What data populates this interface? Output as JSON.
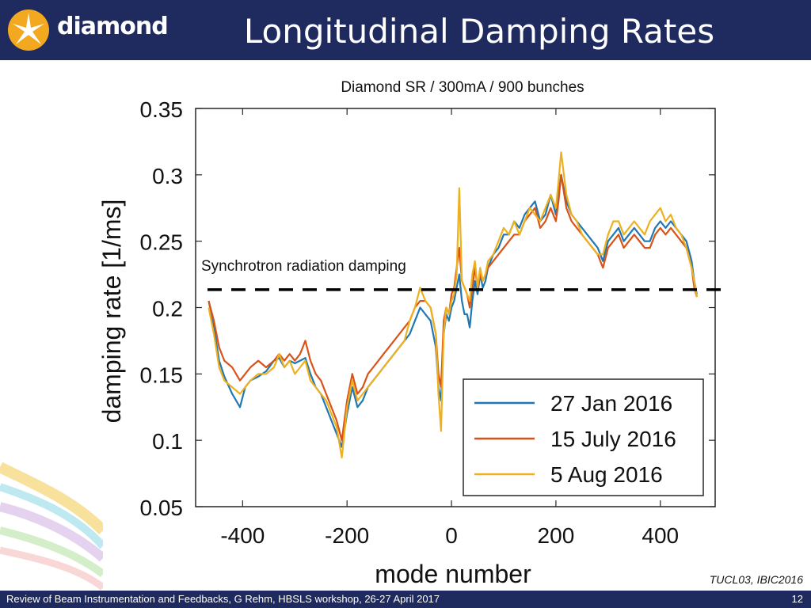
{
  "header": {
    "logo_text": "diamond",
    "title": "Longitudinal Damping Rates"
  },
  "footer": {
    "text": "Review of Beam Instrumentation and Feedbacks, G Rehm, HBSLS workshop, 26-27 April 2017",
    "page_number": "12"
  },
  "conference_ref": "TUCL03, IBIC2016",
  "colors": {
    "header_bg": "#1f2a5e",
    "series": [
      "#1f77b4",
      "#d95319",
      "#edb120"
    ]
  },
  "chart_data": {
    "type": "line",
    "title": "Diamond SR / 300mA / 900 bunches",
    "xlabel": "mode number",
    "ylabel": "damping rate [1/ms]",
    "xlim": [
      -490,
      505
    ],
    "ylim": [
      0.05,
      0.35
    ],
    "xticks": [
      -400,
      -200,
      0,
      200,
      400
    ],
    "yticks": [
      0.05,
      0.1,
      0.15,
      0.2,
      0.25,
      0.3,
      0.35
    ],
    "ytick_labels": [
      "0.05",
      "0.1",
      "0.15",
      "0.2",
      "0.25",
      "0.3",
      "0.35"
    ],
    "grid": false,
    "legend_position": "bottom-right",
    "annotation": {
      "text": "Synchrotron radiation damping",
      "value": 0.2135,
      "style": "dashed"
    },
    "x": [
      -465,
      -455,
      -445,
      -435,
      -420,
      -405,
      -395,
      -385,
      -370,
      -355,
      -340,
      -330,
      -320,
      -310,
      -300,
      -290,
      -280,
      -270,
      -260,
      -250,
      -240,
      -230,
      -220,
      -210,
      -200,
      -190,
      -180,
      -170,
      -160,
      -150,
      -140,
      -130,
      -120,
      -110,
      -100,
      -90,
      -80,
      -70,
      -60,
      -50,
      -40,
      -30,
      -25,
      -20,
      -15,
      -10,
      -5,
      0,
      5,
      10,
      15,
      20,
      25,
      30,
      35,
      40,
      45,
      50,
      55,
      60,
      65,
      70,
      80,
      90,
      100,
      110,
      120,
      130,
      140,
      150,
      160,
      170,
      180,
      190,
      200,
      205,
      210,
      220,
      230,
      240,
      250,
      260,
      270,
      280,
      290,
      300,
      310,
      320,
      330,
      340,
      350,
      360,
      370,
      380,
      390,
      400,
      410,
      420,
      430,
      440,
      450,
      460,
      465,
      470
    ],
    "series": [
      {
        "name": "27 Jan 2016",
        "values": [
          0.205,
          0.185,
          0.16,
          0.148,
          0.135,
          0.125,
          0.14,
          0.145,
          0.148,
          0.152,
          0.16,
          0.162,
          0.155,
          0.16,
          0.158,
          0.16,
          0.162,
          0.15,
          0.14,
          0.135,
          0.125,
          0.115,
          0.105,
          0.095,
          0.12,
          0.14,
          0.125,
          0.13,
          0.14,
          0.145,
          0.15,
          0.155,
          0.16,
          0.165,
          0.17,
          0.175,
          0.18,
          0.19,
          0.2,
          0.195,
          0.19,
          0.17,
          0.14,
          0.13,
          0.18,
          0.195,
          0.19,
          0.2,
          0.205,
          0.215,
          0.225,
          0.205,
          0.195,
          0.195,
          0.185,
          0.205,
          0.22,
          0.21,
          0.225,
          0.215,
          0.22,
          0.23,
          0.24,
          0.245,
          0.255,
          0.255,
          0.265,
          0.26,
          0.27,
          0.275,
          0.28,
          0.265,
          0.27,
          0.285,
          0.27,
          0.285,
          0.3,
          0.28,
          0.27,
          0.265,
          0.26,
          0.255,
          0.25,
          0.245,
          0.235,
          0.25,
          0.255,
          0.26,
          0.25,
          0.255,
          0.26,
          0.255,
          0.25,
          0.25,
          0.26,
          0.265,
          0.26,
          0.265,
          0.26,
          0.255,
          0.25,
          0.235,
          0.22,
          0.21
        ]
      },
      {
        "name": "15 July 2016",
        "values": [
          0.205,
          0.19,
          0.17,
          0.16,
          0.155,
          0.145,
          0.15,
          0.155,
          0.16,
          0.155,
          0.16,
          0.165,
          0.16,
          0.165,
          0.16,
          0.165,
          0.175,
          0.16,
          0.15,
          0.145,
          0.135,
          0.125,
          0.115,
          0.1,
          0.13,
          0.15,
          0.135,
          0.14,
          0.15,
          0.155,
          0.16,
          0.165,
          0.17,
          0.175,
          0.18,
          0.185,
          0.19,
          0.2,
          0.205,
          0.205,
          0.2,
          0.18,
          0.15,
          0.14,
          0.19,
          0.2,
          0.195,
          0.21,
          0.215,
          0.23,
          0.245,
          0.22,
          0.215,
          0.21,
          0.2,
          0.215,
          0.23,
          0.215,
          0.225,
          0.22,
          0.225,
          0.23,
          0.235,
          0.24,
          0.245,
          0.25,
          0.255,
          0.255,
          0.265,
          0.27,
          0.275,
          0.26,
          0.265,
          0.275,
          0.265,
          0.28,
          0.3,
          0.275,
          0.265,
          0.26,
          0.255,
          0.25,
          0.245,
          0.24,
          0.23,
          0.245,
          0.25,
          0.255,
          0.245,
          0.25,
          0.255,
          0.25,
          0.245,
          0.245,
          0.255,
          0.26,
          0.255,
          0.26,
          0.255,
          0.25,
          0.245,
          0.23,
          0.215,
          0.208
        ]
      },
      {
        "name": "5 Aug 2016",
        "values": [
          0.2,
          0.18,
          0.155,
          0.145,
          0.14,
          0.135,
          0.14,
          0.145,
          0.15,
          0.15,
          0.155,
          0.165,
          0.155,
          0.16,
          0.15,
          0.155,
          0.16,
          0.145,
          0.14,
          0.135,
          0.13,
          0.12,
          0.11,
          0.087,
          0.125,
          0.145,
          0.13,
          0.135,
          0.14,
          0.145,
          0.15,
          0.155,
          0.16,
          0.165,
          0.17,
          0.175,
          0.19,
          0.2,
          0.215,
          0.205,
          0.2,
          0.18,
          0.135,
          0.107,
          0.18,
          0.2,
          0.195,
          0.205,
          0.21,
          0.225,
          0.29,
          0.22,
          0.215,
          0.21,
          0.205,
          0.225,
          0.235,
          0.215,
          0.23,
          0.22,
          0.225,
          0.235,
          0.24,
          0.25,
          0.26,
          0.255,
          0.265,
          0.255,
          0.265,
          0.275,
          0.27,
          0.265,
          0.275,
          0.285,
          0.275,
          0.295,
          0.317,
          0.285,
          0.27,
          0.265,
          0.255,
          0.25,
          0.245,
          0.24,
          0.24,
          0.255,
          0.265,
          0.265,
          0.255,
          0.26,
          0.265,
          0.26,
          0.255,
          0.265,
          0.27,
          0.275,
          0.265,
          0.27,
          0.26,
          0.255,
          0.245,
          0.23,
          0.22,
          0.208
        ]
      }
    ]
  }
}
